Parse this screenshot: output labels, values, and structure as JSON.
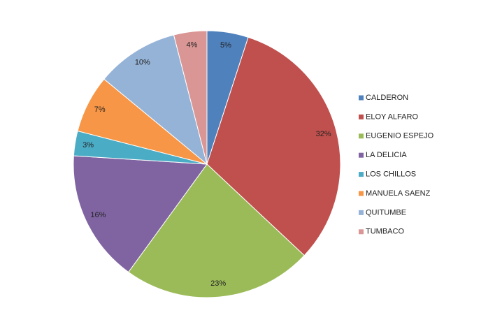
{
  "chart_data": {
    "type": "pie",
    "categories": [
      "CALDERON",
      "ELOY ALFARO",
      "EUGENIO ESPEJO",
      "LA DELICIA",
      "LOS CHILLOS",
      "MANUELA SAENZ",
      "QUITUMBE",
      "TUMBACO"
    ],
    "values": [
      5,
      32,
      23,
      16,
      3,
      7,
      10,
      4
    ],
    "value_labels": [
      "5%",
      "32%",
      "23%",
      "16%",
      "3%",
      "7%",
      "10%",
      "4%"
    ],
    "colors": [
      "#4f81bd",
      "#c0504d",
      "#9bbb59",
      "#8064a2",
      "#4bacc6",
      "#f79646",
      "#95b3d7",
      "#d99694"
    ],
    "legend": "right"
  }
}
